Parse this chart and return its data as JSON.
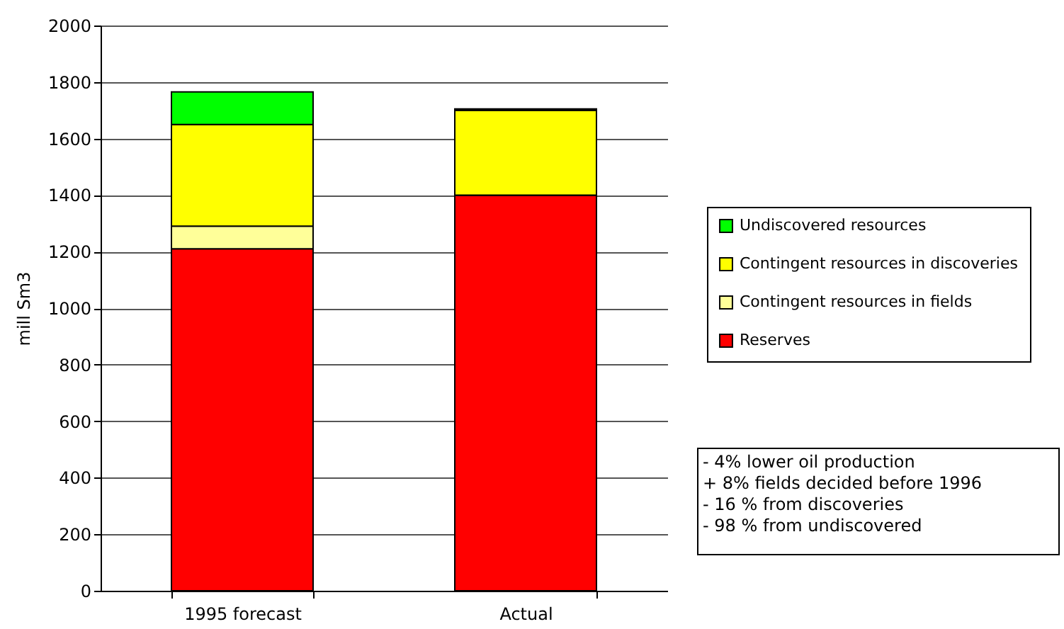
{
  "chart_data": {
    "type": "bar",
    "stacked": true,
    "ylabel": "mill Sm3",
    "categories": [
      "1995 forecast",
      "Actual"
    ],
    "series": [
      {
        "name": "Reserves",
        "color": "#ff0000",
        "values": [
          1210,
          1400
        ]
      },
      {
        "name": "Contingent resources in fields",
        "color": "#ffff99",
        "values": [
          80,
          0
        ]
      },
      {
        "name": "Contingent resources in discoveries",
        "color": "#ffff00",
        "values": [
          360,
          300
        ]
      },
      {
        "name": "Undiscovered resources",
        "color": "#00ff00",
        "values": [
          115,
          5
        ]
      }
    ],
    "ylim": [
      0,
      2000
    ],
    "yticks": [
      0,
      200,
      400,
      600,
      800,
      1000,
      1200,
      1400,
      1600,
      1800,
      2000
    ],
    "grid": "y",
    "legend": "right",
    "annotations": [
      "- 4% lower oil production",
      "+ 8%  fields decided before 1996",
      "- 16 %  from discoveries",
      "- 98 % from undiscovered"
    ]
  }
}
